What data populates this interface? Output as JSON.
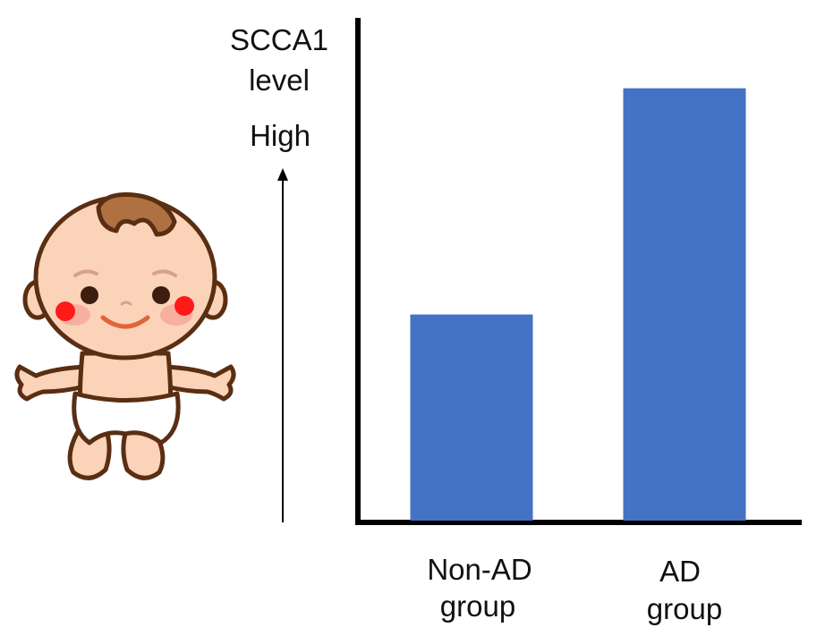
{
  "chart_data": {
    "type": "bar",
    "title": "",
    "ylabel": "SCCA1 level",
    "ylabel_lines": [
      "SCCA1",
      "level"
    ],
    "high_label": "High",
    "xlabel": "",
    "categories": [
      {
        "lines": [
          "Non-AD",
          "group"
        ]
      },
      {
        "lines": [
          "AD",
          "group"
        ]
      }
    ],
    "values": [
      0.41,
      0.86
    ],
    "ylim": [
      0,
      1
    ],
    "grid": false,
    "bar_color": "#4472c4",
    "axis_color": "#000000",
    "illustration": "baby-in-diaper"
  }
}
